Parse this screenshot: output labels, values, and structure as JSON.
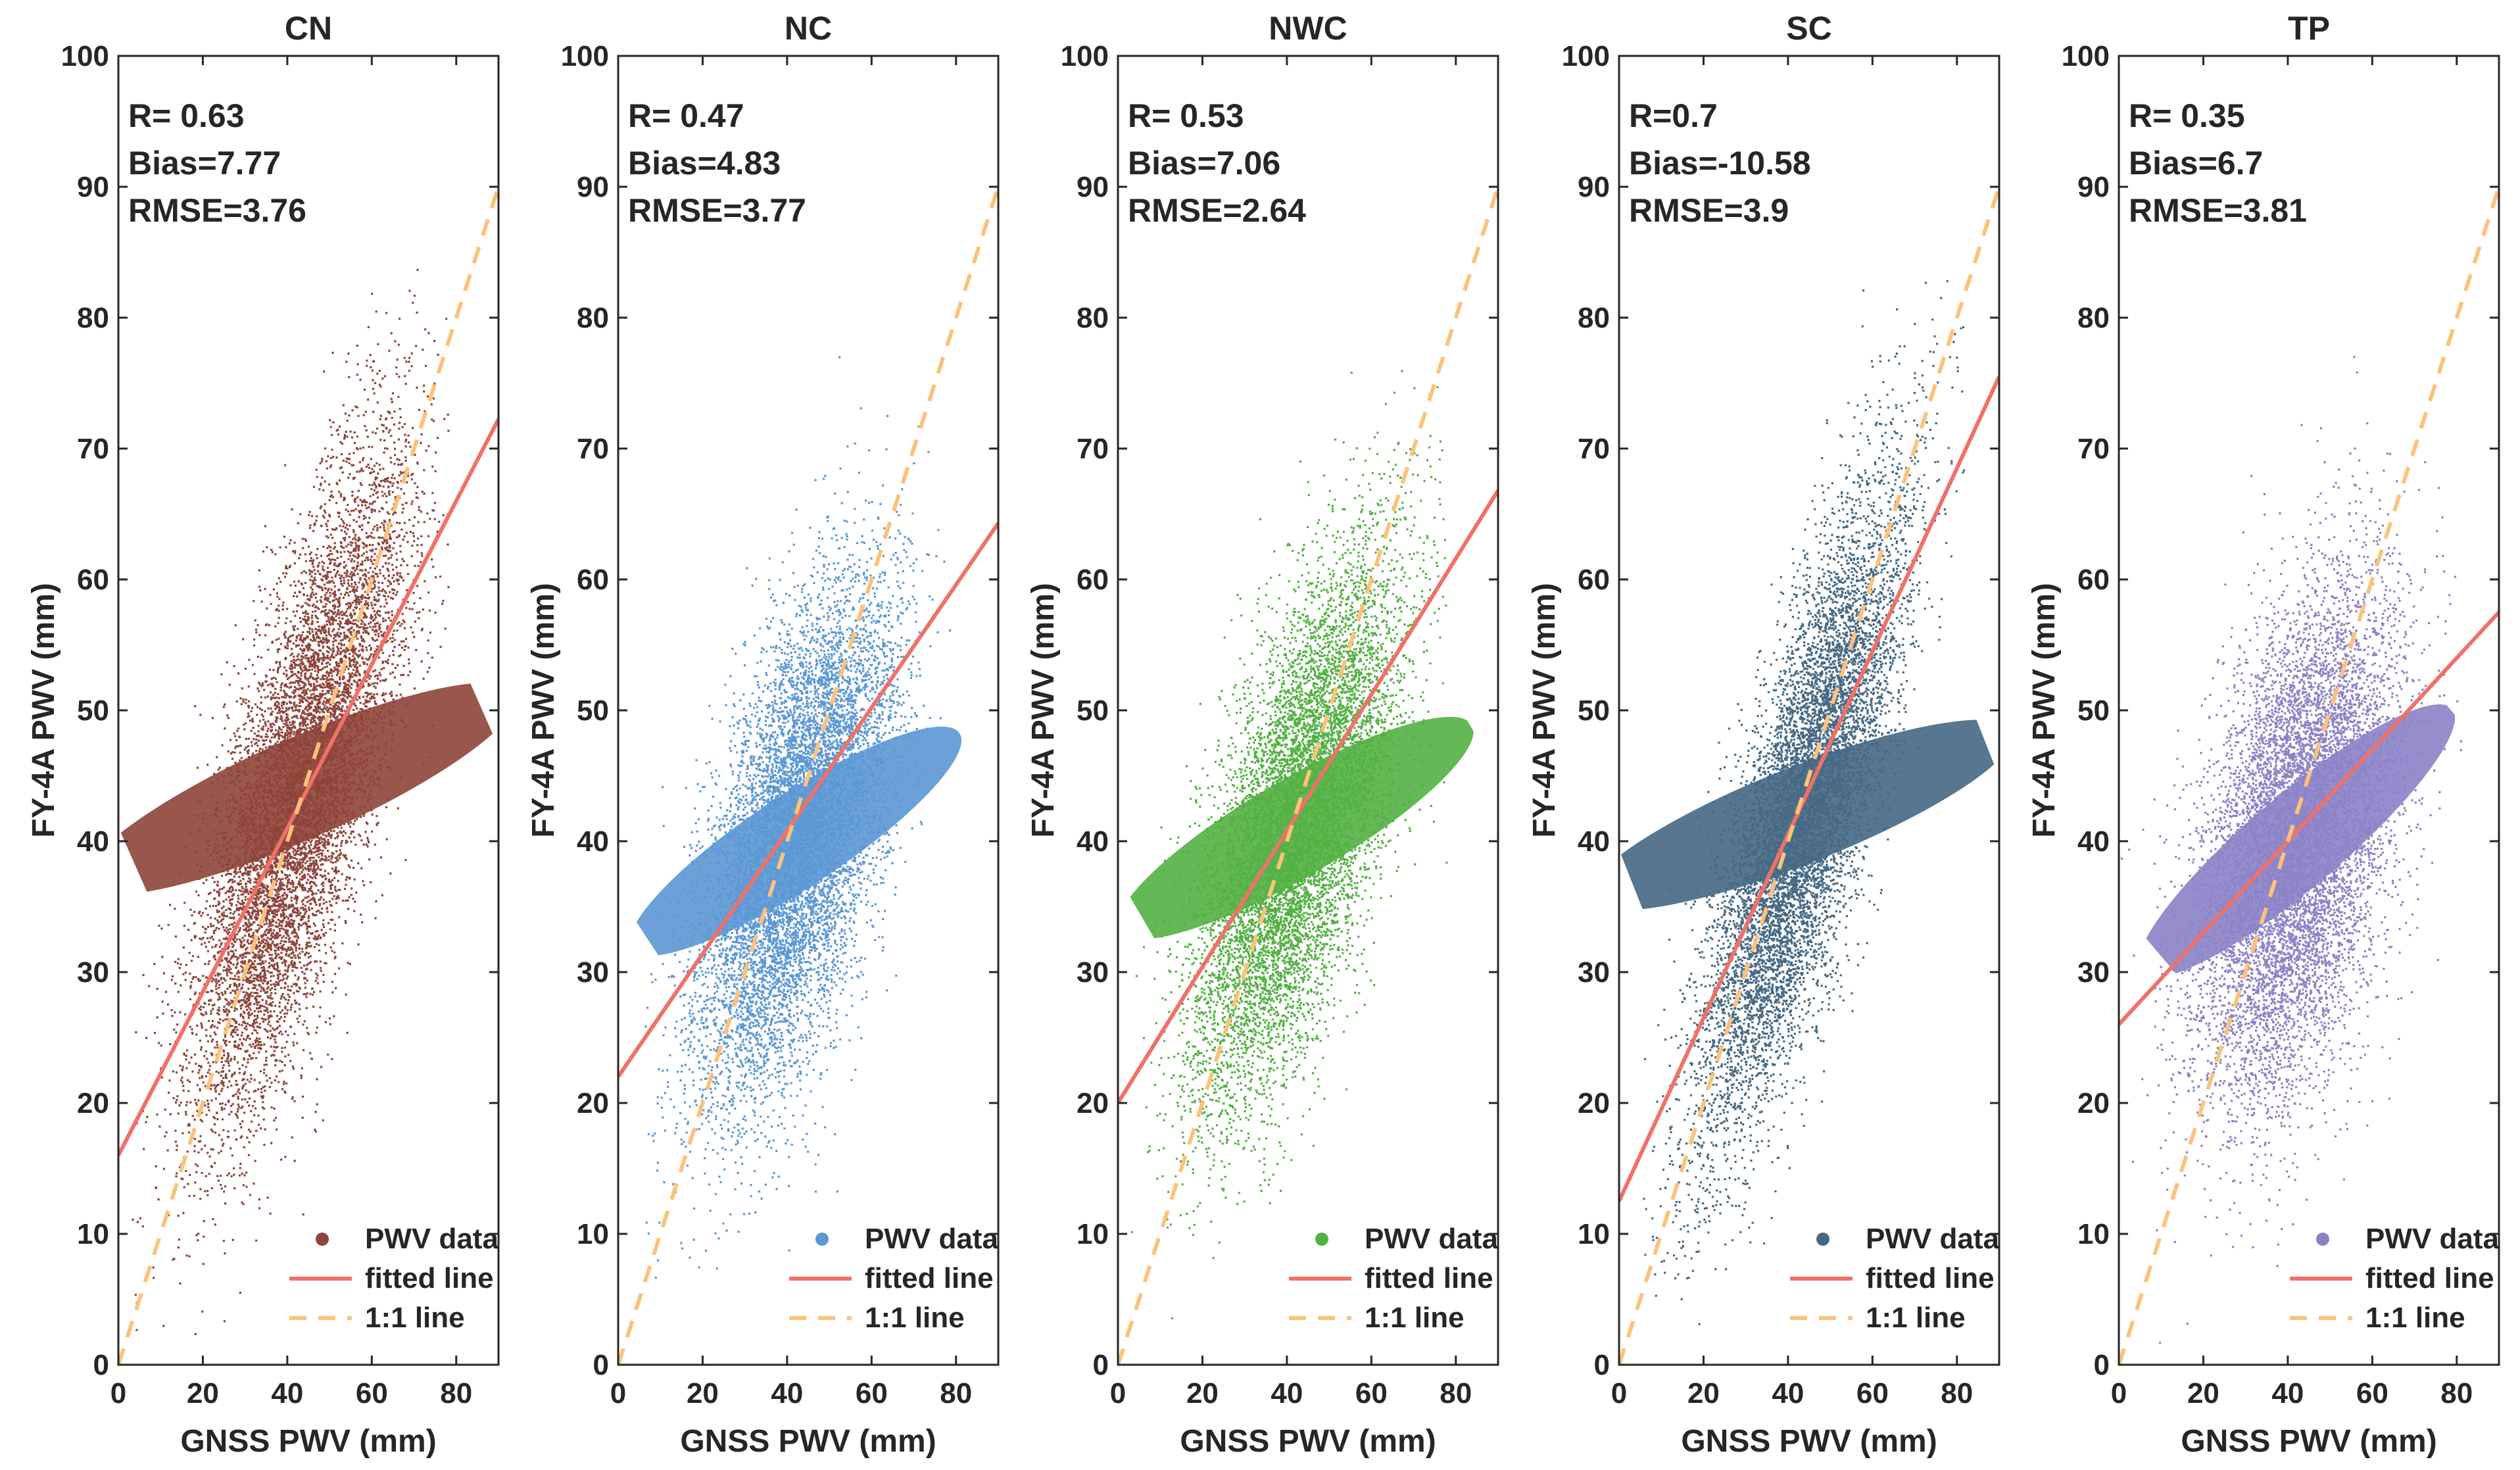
{
  "chart_data": [
    {
      "type": "scatter",
      "title": "CN",
      "xlabel": "GNSS PWV  (mm)",
      "ylabel": "FY-4A PWV (mm)",
      "xlim": [
        0,
        90
      ],
      "ylim": [
        0,
        100
      ],
      "xticks": [
        0,
        20,
        40,
        60,
        80
      ],
      "yticks": [
        0,
        10,
        20,
        30,
        40,
        50,
        60,
        70,
        80,
        90,
        100
      ],
      "stats": [
        "R= 0.63",
        "Bias=7.77",
        "RMSE=3.76"
      ],
      "scatter_color": "#8e443a",
      "cloud": {
        "cx": 43,
        "cy": 44,
        "sx": 12.5,
        "sy": 14.5,
        "rho": 0.63,
        "x_range": [
          3,
          78
        ],
        "y_range": [
          2,
          86
        ]
      },
      "fitted_line": {
        "slope": 0.625,
        "intercept": 16
      },
      "one_to_one": {
        "slope": 1,
        "intercept": 0
      },
      "legend": [
        "PWV data",
        "fitted line",
        "1:1 line"
      ]
    },
    {
      "type": "scatter",
      "title": "NC",
      "xlabel": "GNSS PWV (mm)",
      "ylabel": "FY-4A PWV (mm)",
      "xlim": [
        0,
        90
      ],
      "ylim": [
        0,
        100
      ],
      "xticks": [
        0,
        20,
        40,
        60,
        80
      ],
      "yticks": [
        0,
        10,
        20,
        30,
        40,
        50,
        60,
        70,
        80,
        90,
        100
      ],
      "stats": [
        "R= 0.47",
        "Bias=4.83",
        "RMSE=3.77"
      ],
      "scatter_color": "#5b97d4",
      "cloud": {
        "cx": 42,
        "cy": 40,
        "sx": 11.5,
        "sy": 12,
        "rho": 0.47,
        "x_range": [
          5,
          80
        ],
        "y_range": [
          5,
          82
        ]
      },
      "fitted_line": {
        "slope": 0.47,
        "intercept": 22
      },
      "one_to_one": {
        "slope": 1,
        "intercept": 0
      },
      "legend": [
        "PWV data",
        "fitted line",
        "1:1 line"
      ]
    },
    {
      "type": "scatter",
      "title": "NWC",
      "xlabel": "GNSS PWV (mm)",
      "ylabel": "FY-4A PWV (mm)",
      "xlim": [
        0,
        90
      ],
      "ylim": [
        0,
        100
      ],
      "xticks": [
        0,
        20,
        40,
        60,
        80
      ],
      "yticks": [
        0,
        10,
        20,
        30,
        40,
        50,
        60,
        70,
        80,
        90,
        100
      ],
      "stats": [
        "R= 0.53",
        "Bias=7.06",
        "RMSE=2.64"
      ],
      "scatter_color": "#53b043",
      "cloud": {
        "cx": 42,
        "cy": 41,
        "sx": 12,
        "sy": 12.5,
        "rho": 0.53,
        "x_range": [
          3,
          78
        ],
        "y_range": [
          2,
          88
        ]
      },
      "fitted_line": {
        "slope": 0.52,
        "intercept": 20
      },
      "one_to_one": {
        "slope": 1,
        "intercept": 0
      },
      "legend": [
        "PWV data",
        "fitted line",
        "1:1 line"
      ]
    },
    {
      "type": "scatter",
      "title": "SC",
      "xlabel": "GNSS PWV (mm)",
      "ylabel": "FY-4A PWV (mm)",
      "xlim": [
        0,
        90
      ],
      "ylim": [
        0,
        100
      ],
      "xticks": [
        0,
        20,
        40,
        60,
        80
      ],
      "yticks": [
        0,
        10,
        20,
        30,
        40,
        50,
        60,
        70,
        80,
        90,
        100
      ],
      "stats": [
        "R=0.7",
        "Bias=-10.58",
        "RMSE=3.9"
      ],
      "scatter_color": "#456884",
      "cloud": {
        "cx": 43,
        "cy": 42,
        "sx": 12,
        "sy": 14,
        "rho": 0.7,
        "x_range": [
          5,
          82
        ],
        "y_range": [
          2,
          86
        ]
      },
      "fitted_line": {
        "slope": 0.7,
        "intercept": 12.5
      },
      "one_to_one": {
        "slope": 1,
        "intercept": 0
      },
      "legend": [
        "PWV data",
        "fitted line",
        "1:1 line"
      ]
    },
    {
      "type": "scatter",
      "title": "TP",
      "xlabel": "GNSS PWV (mm)",
      "ylabel": "FY-4A PWV (mm)",
      "xlim": [
        0,
        90
      ],
      "ylim": [
        0,
        100
      ],
      "xticks": [
        0,
        20,
        40,
        60,
        80
      ],
      "yticks": [
        0,
        10,
        20,
        30,
        40,
        50,
        60,
        70,
        80,
        90,
        100
      ],
      "stats": [
        "R= 0.35",
        "Bias=6.7",
        "RMSE=3.81"
      ],
      "scatter_color": "#8b82c6",
      "cloud": {
        "cx": 42,
        "cy": 40,
        "sx": 11.5,
        "sy": 12.5,
        "rho": 0.35,
        "x_range": [
          0,
          82
        ],
        "y_range": [
          1,
          78
        ]
      },
      "fitted_line": {
        "slope": 0.35,
        "intercept": 26
      },
      "one_to_one": {
        "slope": 1,
        "intercept": 0
      },
      "legend": [
        "PWV data",
        "fitted line",
        "1:1 line"
      ]
    }
  ],
  "colors": {
    "fitted_line": "#f07167",
    "one_to_one": "#fdc27a",
    "axis": "#262626"
  }
}
